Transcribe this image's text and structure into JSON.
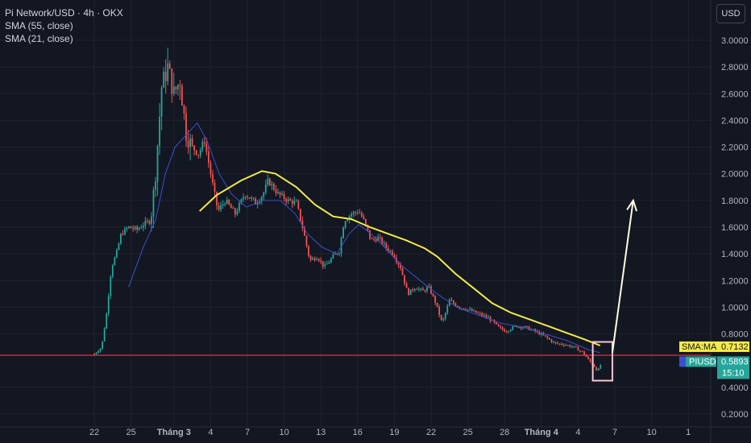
{
  "header": {
    "title": "Pi Network/USD · 4h · OKX",
    "indicator_1": "SMA (55, close)",
    "indicator_2": "SMA (21, close)",
    "currency_button": "USD"
  },
  "colors": {
    "background": "#131722",
    "grid": "#1f2330",
    "candle_up": "#26a69a",
    "candle_down": "#ef5350",
    "sma55": "#f5e94a",
    "sma21": "#3d4fd1",
    "support_line": "#f23645",
    "arrow": "#fffde0",
    "box": "#f8c7d2"
  },
  "chart_data": {
    "type": "candlestick",
    "symbol": "PIUSD",
    "timeframe": "4h",
    "y_axis": {
      "ticks": [
        3.0,
        2.8,
        2.6,
        2.4,
        2.2,
        2.0,
        1.8,
        1.6,
        1.4,
        1.2,
        1.0,
        0.8,
        0.4,
        0.2
      ],
      "tick_labels": [
        "3.0000",
        "2.8000",
        "2.6000",
        "2.4000",
        "2.2000",
        "2.0000",
        "1.8000",
        "1.6000",
        "1.4000",
        "1.2000",
        "1.0000",
        "0.8000",
        "0.4000",
        "0.2000"
      ],
      "range": [
        0.1,
        3.2
      ]
    },
    "x_axis": {
      "tick_labels": [
        "22",
        "25",
        "Tháng 3",
        "4",
        "7",
        "10",
        "13",
        "16",
        "19",
        "22",
        "25",
        "28",
        "Tháng 4",
        "4",
        "7",
        "10",
        "1"
      ],
      "tick_days": [
        0,
        3,
        6.5,
        9.5,
        12.5,
        15.5,
        18.5,
        21.5,
        24.5,
        27.5,
        30.5,
        33.5,
        36.5,
        39.5,
        42.5,
        45.5,
        48.5
      ],
      "range": [
        -8.4,
        49.7
      ]
    },
    "price_path": [
      [
        0,
        0.65
      ],
      [
        0.6,
        0.7
      ],
      [
        1.0,
        0.95
      ],
      [
        1.4,
        1.3
      ],
      [
        1.8,
        1.4
      ],
      [
        2.2,
        1.55
      ],
      [
        2.8,
        1.6
      ],
      [
        3.5,
        1.58
      ],
      [
        4.0,
        1.62
      ],
      [
        4.6,
        1.65
      ],
      [
        5.0,
        2.0
      ],
      [
        5.5,
        2.65
      ],
      [
        6.0,
        2.8
      ],
      [
        6.5,
        2.6
      ],
      [
        7.0,
        2.7
      ],
      [
        7.5,
        2.3
      ],
      [
        8.0,
        2.2
      ],
      [
        8.5,
        2.15
      ],
      [
        9.0,
        2.25
      ],
      [
        9.6,
        1.95
      ],
      [
        10.1,
        1.72
      ],
      [
        10.7,
        1.8
      ],
      [
        11.5,
        1.7
      ],
      [
        12.3,
        1.85
      ],
      [
        13.2,
        1.78
      ],
      [
        13.8,
        1.85
      ],
      [
        14.2,
        1.95
      ],
      [
        15.0,
        1.85
      ],
      [
        15.8,
        1.8
      ],
      [
        16.5,
        1.78
      ],
      [
        17.0,
        1.6
      ],
      [
        17.6,
        1.35
      ],
      [
        18.2,
        1.38
      ],
      [
        18.8,
        1.3
      ],
      [
        19.5,
        1.38
      ],
      [
        20.0,
        1.42
      ],
      [
        20.4,
        1.65
      ],
      [
        21.0,
        1.7
      ],
      [
        21.6,
        1.72
      ],
      [
        22.0,
        1.65
      ],
      [
        22.6,
        1.5
      ],
      [
        23.2,
        1.52
      ],
      [
        23.8,
        1.45
      ],
      [
        24.4,
        1.4
      ],
      [
        25.0,
        1.3
      ],
      [
        25.6,
        1.1
      ],
      [
        26.2,
        1.15
      ],
      [
        26.8,
        1.12
      ],
      [
        27.3,
        1.15
      ],
      [
        27.8,
        1.05
      ],
      [
        28.4,
        0.88
      ],
      [
        29.0,
        1.05
      ],
      [
        29.8,
        1.0
      ],
      [
        30.6,
        0.98
      ],
      [
        31.4,
        0.95
      ],
      [
        32.2,
        0.92
      ],
      [
        33.0,
        0.85
      ],
      [
        33.6,
        0.82
      ],
      [
        34.4,
        0.86
      ],
      [
        35.2,
        0.85
      ],
      [
        36.0,
        0.82
      ],
      [
        36.8,
        0.78
      ],
      [
        37.6,
        0.73
      ],
      [
        38.4,
        0.72
      ],
      [
        39.2,
        0.7
      ],
      [
        39.9,
        0.66
      ],
      [
        40.4,
        0.6
      ],
      [
        40.8,
        0.56
      ],
      [
        41.1,
        0.52
      ],
      [
        41.4,
        0.58
      ]
    ],
    "sma55": [
      [
        8.6,
        1.72
      ],
      [
        10.0,
        1.84
      ],
      [
        12.0,
        1.95
      ],
      [
        13.7,
        2.02
      ],
      [
        14.8,
        2.0
      ],
      [
        16.5,
        1.9
      ],
      [
        18.0,
        1.77
      ],
      [
        19.5,
        1.68
      ],
      [
        21.0,
        1.66
      ],
      [
        22.5,
        1.6
      ],
      [
        24.0,
        1.55
      ],
      [
        25.5,
        1.5
      ],
      [
        27.0,
        1.44
      ],
      [
        28.0,
        1.38
      ],
      [
        29.5,
        1.25
      ],
      [
        31.0,
        1.14
      ],
      [
        32.5,
        1.03
      ],
      [
        34.0,
        0.96
      ],
      [
        35.5,
        0.91
      ],
      [
        37.0,
        0.86
      ],
      [
        38.5,
        0.81
      ],
      [
        40.0,
        0.76
      ],
      [
        41.3,
        0.713
      ]
    ],
    "sma21": [
      [
        2.8,
        1.15
      ],
      [
        4.0,
        1.45
      ],
      [
        5.0,
        1.65
      ],
      [
        5.8,
        2.0
      ],
      [
        6.6,
        2.2
      ],
      [
        7.6,
        2.3
      ],
      [
        8.4,
        2.38
      ],
      [
        9.2,
        2.25
      ],
      [
        10.2,
        2.0
      ],
      [
        11.2,
        1.85
      ],
      [
        12.4,
        1.75
      ],
      [
        13.8,
        1.8
      ],
      [
        15.2,
        1.8
      ],
      [
        16.4,
        1.7
      ],
      [
        17.4,
        1.55
      ],
      [
        18.6,
        1.45
      ],
      [
        19.8,
        1.4
      ],
      [
        20.8,
        1.55
      ],
      [
        21.6,
        1.62
      ],
      [
        22.6,
        1.55
      ],
      [
        23.8,
        1.44
      ],
      [
        25.0,
        1.32
      ],
      [
        26.6,
        1.2
      ],
      [
        28.0,
        1.1
      ],
      [
        29.6,
        1.0
      ],
      [
        31.4,
        0.94
      ],
      [
        33.2,
        0.88
      ],
      [
        35.0,
        0.85
      ],
      [
        36.8,
        0.8
      ],
      [
        38.6,
        0.75
      ],
      [
        40.4,
        0.68
      ],
      [
        41.3,
        0.66
      ]
    ],
    "support_level": 0.64,
    "projection_arrow": {
      "from": [
        42.3,
        0.66
      ],
      "to": [
        44.0,
        1.8
      ]
    },
    "highlight_box": {
      "day_range": [
        40.7,
        42.3
      ],
      "price_range": [
        0.45,
        0.74
      ]
    },
    "price_labels": [
      {
        "id": "sma",
        "text": "SMA:MA",
        "value_text": "0.7132",
        "price": 0.7132
      },
      {
        "id": "last",
        "text": "PIUSD",
        "value_text": "0.5893",
        "price": 0.5893,
        "countdown": "15:10"
      }
    ]
  }
}
